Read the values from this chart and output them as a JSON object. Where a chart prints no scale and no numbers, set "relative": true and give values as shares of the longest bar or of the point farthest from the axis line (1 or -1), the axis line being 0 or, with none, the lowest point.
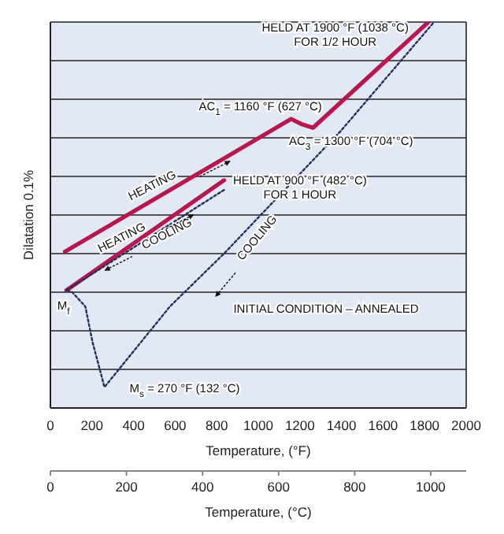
{
  "chart_data": {
    "type": "line",
    "relative": true,
    "xlabel": "Temperature, (°F)",
    "ylabel": "Dilatation 0.1%",
    "x2label": "Temperature, (°C)",
    "xlim": [
      0,
      2000
    ],
    "xticks": [
      0,
      200,
      400,
      600,
      800,
      1000,
      1200,
      1400,
      1600,
      1800,
      2000
    ],
    "x2lim": [
      0,
      1093.3
    ],
    "x2ticks": [
      0,
      200,
      400,
      600,
      800,
      1000
    ],
    "grid": true,
    "marker": "none",
    "series": [
      {
        "color": "#b8174e",
        "line_style": "solid",
        "x": [
          70,
          1158,
          1210,
          1263,
          1818
        ],
        "values": [
          0.405,
          0.749,
          0.735,
          0.726,
          1.0
        ]
      },
      {
        "color": "#b8174e",
        "line_style": "solid",
        "x": [
          77,
          835
        ],
        "values": [
          0.305,
          0.59
        ]
      },
      {
        "color": "#22305e",
        "line_style": "dotted",
        "x": [
          835,
          77
        ],
        "values": [
          0.565,
          0.305
        ]
      },
      {
        "color": "#22305e",
        "line_style": "dotted",
        "x": [
          1839,
          1397,
          835,
          575,
          400,
          260,
          203,
          168,
          105,
          77
        ],
        "values": [
          0.996,
          0.718,
          0.4,
          0.263,
          0.147,
          0.054,
          0.17,
          0.263,
          0.3,
          0.305
        ]
      }
    ],
    "annotations": [
      "HELD AT 1900 °F (1038 °C)\nFOR 1/2 HOUR",
      "AC$_{1}$ = 1160 °F (627 °C)",
      "AC$_{3}$ = 1300 °F (704 °C)",
      "HELD AT 900 °F (482 °C)\nFOR 1 HOUR",
      "HEATING",
      "HEATING",
      "COOLING",
      "COOLING",
      "M$_{f}$",
      "INITIAL CONDITION – ANNEALED",
      "M$_{s}$ = 270 °F (132 °C)"
    ]
  }
}
